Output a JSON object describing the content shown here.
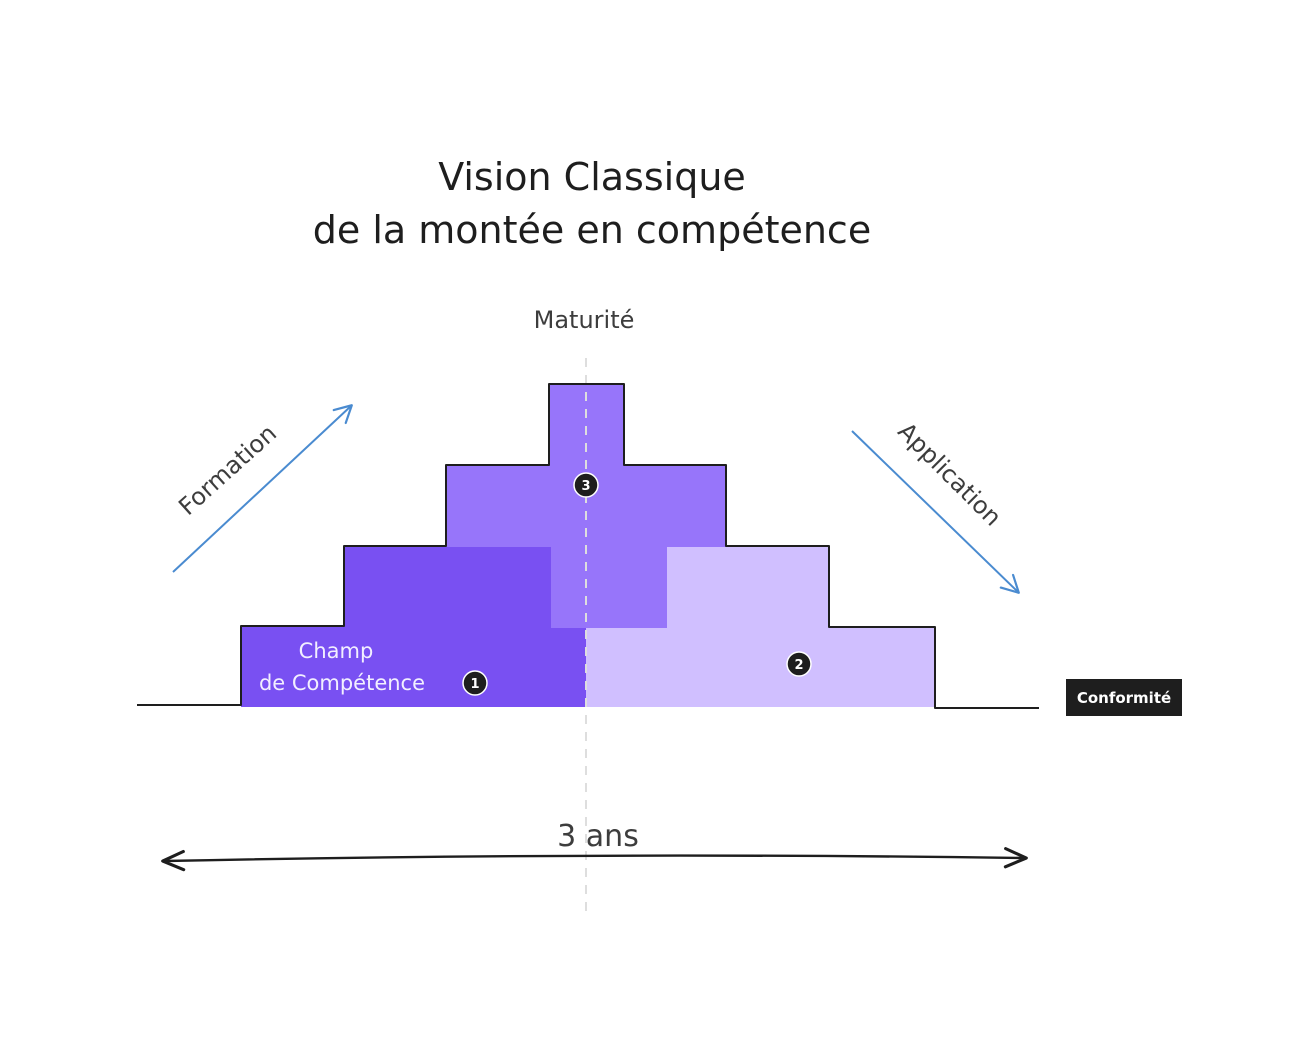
{
  "title": {
    "line1": "Vision Classique",
    "line2": "de la montée en compétence"
  },
  "axes": {
    "vertical_label": "Maturité",
    "horizontal_tag": "Conformité",
    "duration_label": "3 ans"
  },
  "arrows": {
    "rising_label": "Formation",
    "falling_label": "Application"
  },
  "zones": [
    {
      "id": "1",
      "label_line1": "Champ",
      "label_line2": "de Compétence",
      "color": "#7950f2"
    },
    {
      "id": "2",
      "color": "#d0bfff"
    },
    {
      "id": "3",
      "color": "#9775fa"
    }
  ],
  "colors": {
    "arrow_blue": "#4a8bd0",
    "stroke": "#1e1e1e",
    "axis_dashed": "#dedede",
    "tag_bg": "#1e1e1e"
  }
}
